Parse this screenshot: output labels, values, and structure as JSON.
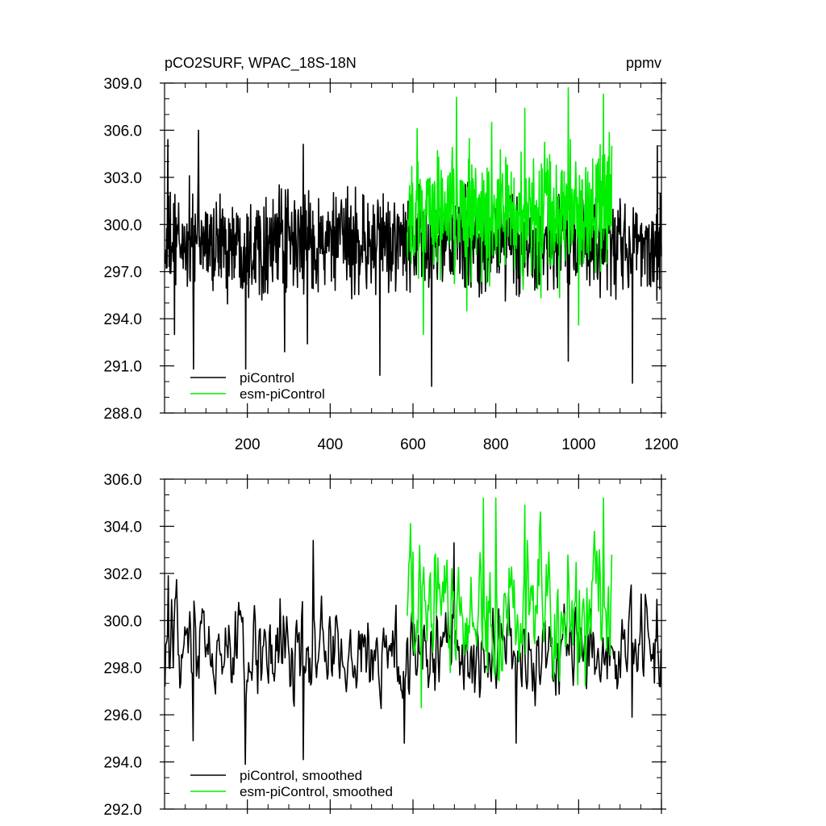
{
  "figure": {
    "title": "pCO2SURF, WPAC_18S-18N",
    "units": "ppmv"
  },
  "colors": {
    "piControl": "#000000",
    "esm_piControl": "#00ee00",
    "axes": "#000000",
    "background": "#ffffff"
  },
  "chart_data": [
    {
      "type": "line",
      "title": "",
      "xlabel": "",
      "ylabel": "",
      "xlim": [
        0,
        1200
      ],
      "ylim": [
        288,
        309
      ],
      "xticks": [
        200,
        400,
        600,
        800,
        1000,
        1200
      ],
      "xtick_labels": [
        "200",
        "400",
        "600",
        "800",
        "1000",
        "1200"
      ],
      "yticks": [
        288,
        291,
        294,
        297,
        300,
        303,
        306,
        309
      ],
      "ytick_labels": [
        "288.0",
        "291.0",
        "294.0",
        "297.0",
        "300.0",
        "303.0",
        "306.0",
        "309.0"
      ],
      "grid": false,
      "legend_position": "bottom-left",
      "series": [
        {
          "name": "piControl",
          "color": "#000000",
          "x_range": [
            1,
            1200
          ],
          "x_step": 1,
          "mean": 298.8,
          "spread": 2.6,
          "selected_points": [
            [
              1,
              297.5
            ],
            [
              8,
              305.4
            ],
            [
              24,
              293.0
            ],
            [
              60,
              303.1
            ],
            [
              70,
              290.8
            ],
            [
              82,
              306.0
            ],
            [
              196,
              290.8
            ],
            [
              290,
              291.9
            ],
            [
              335,
              305.1
            ],
            [
              345,
              292.4
            ],
            [
              520,
              290.4
            ],
            [
              645,
              289.7
            ],
            [
              975,
              291.3
            ],
            [
              1130,
              289.9
            ],
            [
              1190,
              305.0
            ],
            [
              1200,
              298.0
            ]
          ]
        },
        {
          "name": "esm-piControl",
          "color": "#00ee00",
          "x_range": [
            586,
            1080
          ],
          "x_step": 1,
          "mean": 300.6,
          "spread": 3.4,
          "selected_points": [
            [
              586,
              299.5
            ],
            [
              610,
              306.1
            ],
            [
              625,
              293.0
            ],
            [
              705,
              308.1
            ],
            [
              730,
              294.5
            ],
            [
              790,
              306.5
            ],
            [
              870,
              307.4
            ],
            [
              975,
              308.7
            ],
            [
              1000,
              293.6
            ],
            [
              1060,
              308.3
            ],
            [
              1080,
              305.0
            ]
          ]
        }
      ]
    },
    {
      "type": "line",
      "title": "",
      "xlabel": "",
      "ylabel": "",
      "xlim": [
        0,
        1200
      ],
      "ylim": [
        292,
        306
      ],
      "yticks": [
        292,
        294,
        296,
        298,
        300,
        302,
        304,
        306
      ],
      "ytick_labels": [
        "292.0",
        "294.0",
        "296.0",
        "298.0",
        "300.0",
        "302.0",
        "304.0",
        "306.0"
      ],
      "grid": false,
      "legend_position": "bottom-left",
      "series": [
        {
          "name": "piControl, smoothed",
          "color": "#000000",
          "x_range": [
            1,
            1200
          ],
          "x_step": 2,
          "mean": 298.7,
          "spread": 1.3,
          "selected_points": [
            [
              1,
              297.2
            ],
            [
              10,
              301.9
            ],
            [
              70,
              294.9
            ],
            [
              196,
              293.9
            ],
            [
              335,
              294.1
            ],
            [
              360,
              303.4
            ],
            [
              580,
              294.8
            ],
            [
              700,
              303.3
            ],
            [
              850,
              294.8
            ],
            [
              1130,
              295.9
            ],
            [
              1190,
              300.9
            ],
            [
              1200,
              298.8
            ]
          ]
        },
        {
          "name": "esm-piControl, smoothed",
          "color": "#00ee00",
          "x_range": [
            586,
            1080
          ],
          "x_step": 2,
          "mean": 300.4,
          "spread": 1.9,
          "selected_points": [
            [
              586,
              300.2
            ],
            [
              600,
              302.9
            ],
            [
              620,
              296.3
            ],
            [
              770,
              305.2
            ],
            [
              780,
              297.8
            ],
            [
              800,
              305.2
            ],
            [
              870,
              304.9
            ],
            [
              1060,
              305.2
            ],
            [
              1080,
              302.8
            ]
          ]
        }
      ]
    }
  ]
}
